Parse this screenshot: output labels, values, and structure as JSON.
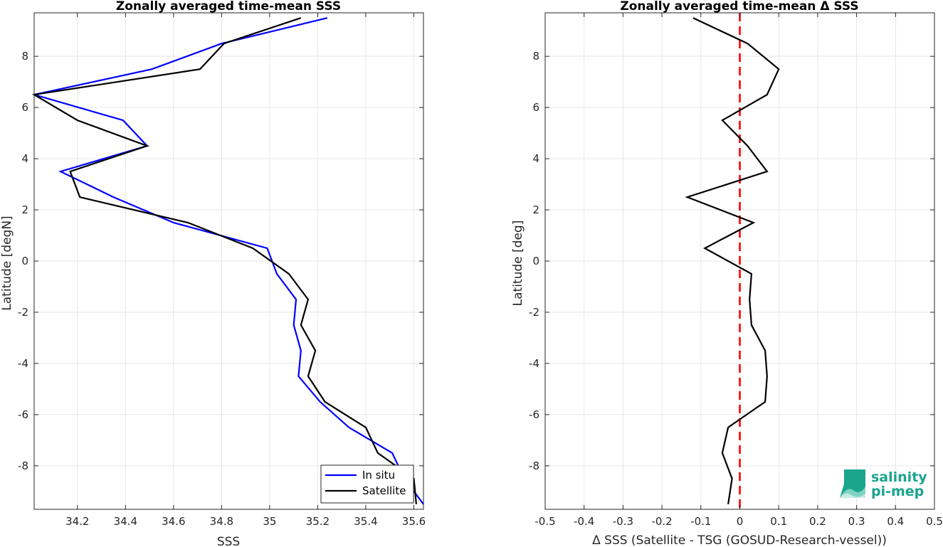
{
  "chart_data": [
    {
      "type": "line",
      "title": "Zonally averaged time-mean SSS",
      "xlabel": "SSS",
      "ylabel": "Latitude [degN]",
      "xlim": [
        34.02,
        35.64
      ],
      "ylim": [
        -9.7,
        9.7
      ],
      "xticks": [
        34.2,
        34.4,
        34.6,
        34.8,
        35,
        35.2,
        35.4,
        35.6
      ],
      "xtick_labels": [
        "34.2",
        "34.4",
        "34.6",
        "34.8",
        "35",
        "35.2",
        "35.4",
        "35.6"
      ],
      "yticks": [
        -8,
        -6,
        -4,
        -2,
        0,
        2,
        4,
        6,
        8
      ],
      "ytick_labels": [
        "-8",
        "-6",
        "-4",
        "-2",
        "0",
        "2",
        "4",
        "6",
        "8"
      ],
      "grid": true,
      "legend_position": "bottom-right",
      "series": [
        {
          "name": "In situ",
          "color": "#0000ff",
          "x": [
            35.24,
            34.8,
            34.51,
            34.02,
            34.39,
            34.49,
            34.13,
            34.35,
            34.6,
            34.99,
            35.03,
            35.11,
            35.1,
            35.13,
            35.12,
            35.21,
            35.33,
            35.51,
            35.56,
            35.64
          ],
          "y": [
            9.5,
            8.5,
            7.5,
            6.5,
            5.5,
            4.5,
            3.5,
            2.5,
            1.5,
            0.5,
            -0.5,
            -1.5,
            -2.5,
            -3.5,
            -4.5,
            -5.5,
            -6.5,
            -7.5,
            -8.5,
            -9.5
          ]
        },
        {
          "name": "Satellite",
          "color": "#000000",
          "x": [
            35.13,
            34.81,
            34.71,
            34.02,
            34.2,
            34.49,
            34.17,
            34.21,
            34.66,
            34.93,
            35.08,
            35.16,
            35.13,
            35.19,
            35.16,
            35.23,
            35.4,
            35.45,
            35.6,
            35.61
          ],
          "y": [
            9.5,
            8.5,
            7.5,
            6.5,
            5.5,
            4.5,
            3.5,
            2.5,
            1.5,
            0.5,
            -0.5,
            -1.5,
            -2.5,
            -3.5,
            -4.5,
            -5.5,
            -6.5,
            -7.5,
            -8.5,
            -9.5
          ]
        }
      ]
    },
    {
      "type": "line",
      "title": "Zonally averaged time-mean Δ SSS",
      "xlabel": "Δ SSS (Satellite - TSG (GOSUD-Research-vessel))",
      "ylabel": "Latitude [deg]",
      "xlim": [
        -0.5,
        0.5
      ],
      "ylim": [
        -9.7,
        9.7
      ],
      "xticks": [
        -0.5,
        -0.4,
        -0.3,
        -0.2,
        -0.1,
        0,
        0.1,
        0.2,
        0.3,
        0.4,
        0.5
      ],
      "xtick_labels": [
        "-0.5",
        "-0.4",
        "-0.3",
        "-0.2",
        "-0.1",
        "0",
        "0.1",
        "0.2",
        "0.3",
        "0.4",
        "0.5"
      ],
      "yticks": [
        -8,
        -6,
        -4,
        -2,
        0,
        2,
        4,
        6,
        8
      ],
      "ytick_labels": [
        "-8",
        "-6",
        "-4",
        "-2",
        "0",
        "2",
        "4",
        "6",
        "8"
      ],
      "grid": true,
      "reference_line": {
        "x": 0,
        "color": "#ff0000",
        "style": "dashed"
      },
      "series": [
        {
          "color": "#000000",
          "x": [
            -0.12,
            0.02,
            0.1,
            0.07,
            -0.045,
            0.02,
            0.07,
            -0.135,
            0.035,
            -0.09,
            0.03,
            0.025,
            0.03,
            0.065,
            0.07,
            0.065,
            -0.03,
            -0.045,
            -0.02,
            -0.03
          ],
          "y": [
            9.5,
            8.5,
            7.5,
            6.5,
            5.5,
            4.5,
            3.5,
            2.5,
            1.5,
            0.5,
            -0.5,
            -1.5,
            -2.5,
            -3.5,
            -4.5,
            -5.5,
            -6.5,
            -7.5,
            -8.5,
            -9.5
          ]
        }
      ]
    }
  ],
  "logo": {
    "line1": "salinity",
    "line2": "pi-mep",
    "color": "#1aa58f"
  }
}
